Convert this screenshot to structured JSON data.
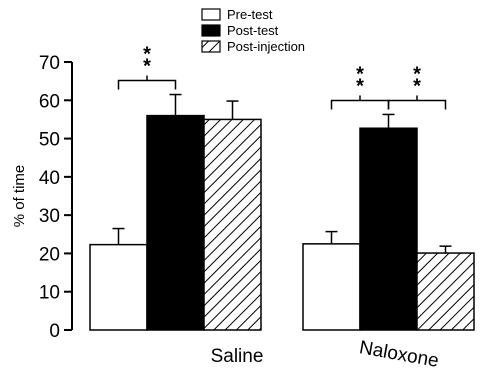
{
  "chart_data": {
    "type": "bar",
    "ylabel": "% of time",
    "ylim": [
      0,
      70
    ],
    "yticks": [
      0,
      10,
      20,
      30,
      40,
      50,
      60,
      70
    ],
    "categories": [
      "Saline",
      "Naloxone"
    ],
    "series": [
      {
        "name": "Pre-test",
        "fill": "white",
        "values": [
          22.3,
          22.5
        ],
        "errors": [
          4.2,
          3.2
        ]
      },
      {
        "name": "Post-test",
        "fill": "black",
        "values": [
          56.0,
          52.7
        ],
        "errors": [
          5.5,
          3.6
        ]
      },
      {
        "name": "Post-injection",
        "fill": "hatch",
        "values": [
          55.0,
          20.1
        ],
        "errors": [
          4.8,
          1.8
        ]
      }
    ],
    "significance": [
      {
        "group": 0,
        "from_series": 0,
        "to_series": 1,
        "label": "* *"
      },
      {
        "group": 1,
        "from_series": 0,
        "to_series": 1,
        "label": "* *"
      },
      {
        "group": 1,
        "from_series": 1,
        "to_series": 2,
        "label": "* *"
      }
    ],
    "legend_position": "top-center",
    "colors": {
      "ink": "#000000",
      "paper": "#ffffff"
    }
  }
}
